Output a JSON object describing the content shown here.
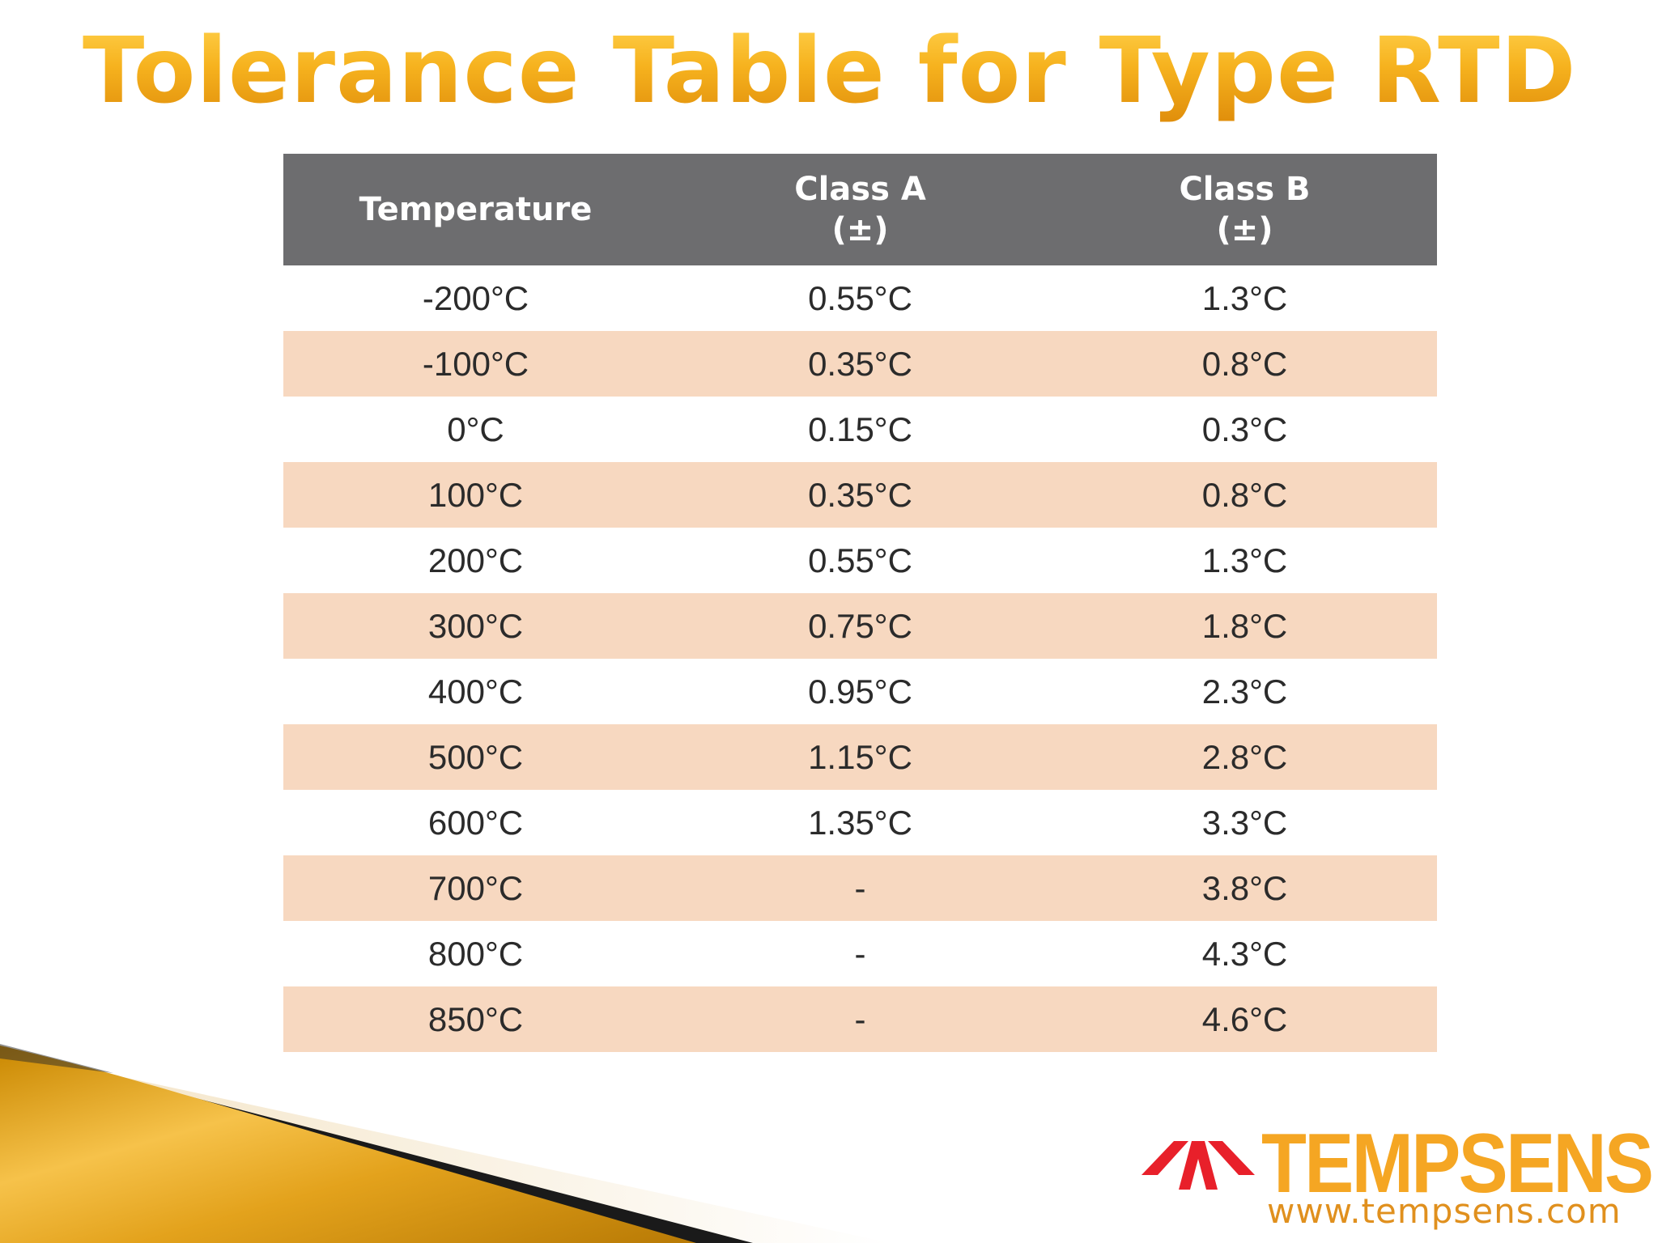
{
  "title": "Tolerance Table for Type RTD",
  "table": {
    "headers": {
      "temperature": "Temperature",
      "class_a": "Class A",
      "class_a_sub": "(±)",
      "class_b": "Class B",
      "class_b_sub": "(±)"
    },
    "rows": [
      {
        "temp": "-200°C",
        "class_a": "0.55°C",
        "class_b": "1.3°C"
      },
      {
        "temp": "-100°C",
        "class_a": "0.35°C",
        "class_b": "0.8°C"
      },
      {
        "temp": "0°C",
        "class_a": "0.15°C",
        "class_b": "0.3°C"
      },
      {
        "temp": "100°C",
        "class_a": "0.35°C",
        "class_b": "0.8°C"
      },
      {
        "temp": "200°C",
        "class_a": "0.55°C",
        "class_b": "1.3°C"
      },
      {
        "temp": "300°C",
        "class_a": "0.75°C",
        "class_b": "1.8°C"
      },
      {
        "temp": "400°C",
        "class_a": "0.95°C",
        "class_b": "2.3°C"
      },
      {
        "temp": "500°C",
        "class_a": "1.15°C",
        "class_b": "2.8°C"
      },
      {
        "temp": "600°C",
        "class_a": "1.35°C",
        "class_b": "3.3°C"
      },
      {
        "temp": "700°C",
        "class_a": "-",
        "class_b": "3.8°C"
      },
      {
        "temp": "800°C",
        "class_a": "-",
        "class_b": "4.3°C"
      },
      {
        "temp": "850°C",
        "class_a": "-",
        "class_b": "4.6°C"
      }
    ]
  },
  "logo": {
    "name": "TEMPSENS",
    "url": "www.tempsens.com",
    "mark_icon": "tempsens-arrows-logo-icon"
  },
  "colors": {
    "title_gold": "#f5b020",
    "header_gray": "#6d6d6f",
    "stripe_peach": "#f7d8c0",
    "brand_orange": "#f5a623",
    "brand_red": "#e8202a"
  }
}
